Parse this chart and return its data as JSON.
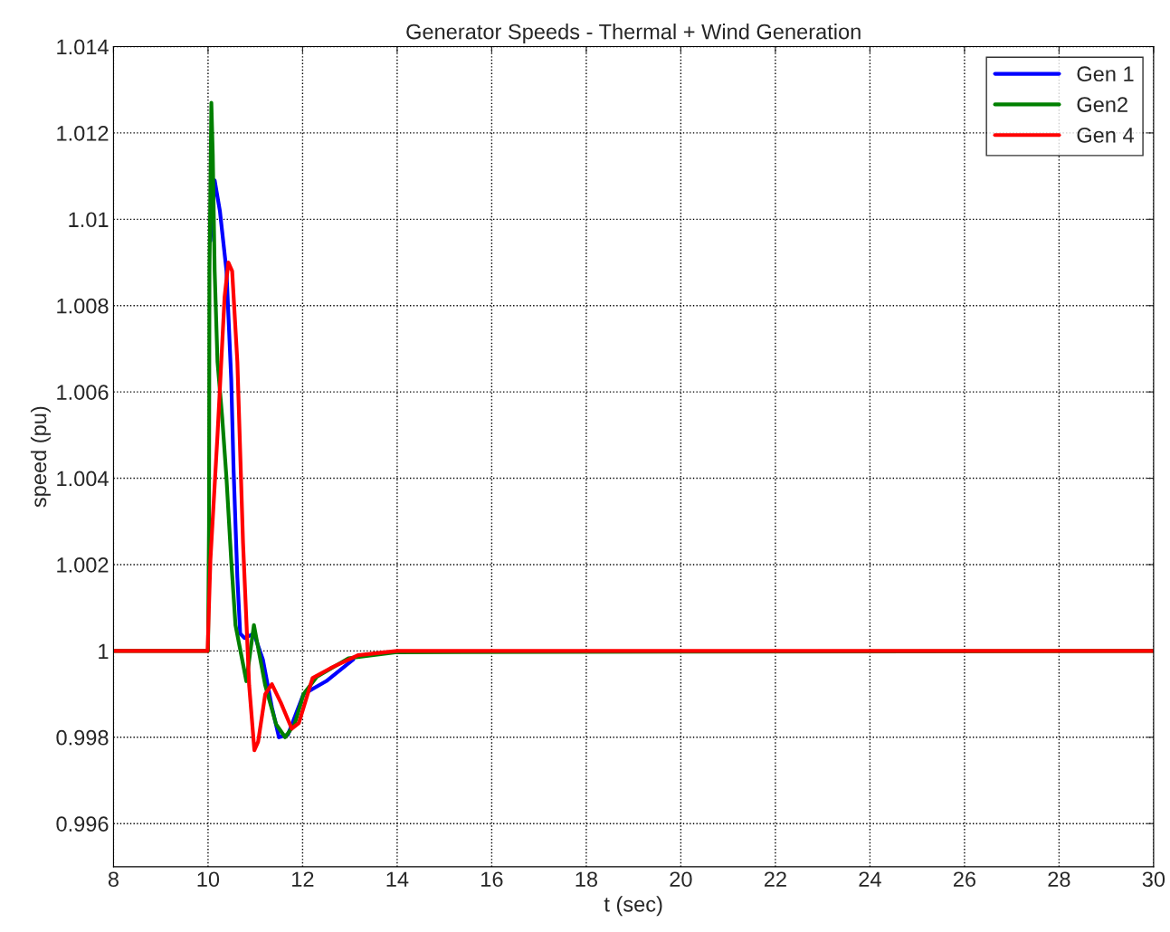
{
  "chart_data": {
    "type": "line",
    "title": "Generator Speeds - Thermal + Wind Generation",
    "xlabel": "t (sec)",
    "ylabel": "speed (pu)",
    "xlim": [
      8,
      30
    ],
    "xticks": [
      8,
      10,
      12,
      14,
      16,
      18,
      20,
      22,
      24,
      26,
      28,
      30
    ],
    "ylim": [
      0.995,
      1.014
    ],
    "yticks": [
      {
        "value": 0.996,
        "label": "0.996"
      },
      {
        "value": 0.998,
        "label": "0.998"
      },
      {
        "value": 1,
        "label": "1"
      },
      {
        "value": 1.002,
        "label": "1.002"
      },
      {
        "value": 1.004,
        "label": "1.004"
      },
      {
        "value": 1.006,
        "label": "1.006"
      },
      {
        "value": 1.008,
        "label": "1.008"
      },
      {
        "value": 1.01,
        "label": "1.01"
      },
      {
        "value": 1.012,
        "label": "1.012"
      },
      {
        "value": 1.014,
        "label": "1.014"
      }
    ],
    "grid": true,
    "legend": "top right",
    "line_style": "solid",
    "marker": "none",
    "series": [
      {
        "name": "Gen 1",
        "color": "#0000ff",
        "x": [
          10.05,
          10.14,
          10.25,
          10.39,
          10.49,
          10.54,
          10.62,
          10.68,
          10.77,
          10.97,
          11.16,
          11.35,
          11.5,
          11.69,
          12.02,
          12.5,
          13.07
        ],
        "values": [
          1.0095,
          1.0109,
          1.0102,
          1.0088,
          1.0063,
          1.0042,
          1.0017,
          1.0004,
          1.0003,
          1.0004,
          0.9998,
          0.9987,
          0.998,
          0.99806,
          0.999,
          0.9993,
          0.9998
        ]
      },
      {
        "name": "Gen2",
        "color": "#008000",
        "x": [
          8,
          10.0,
          10.02,
          10.03,
          10.07,
          10.1,
          10.14,
          10.2,
          10.3,
          10.39,
          10.49,
          10.58,
          10.81,
          10.97,
          11.21,
          11.44,
          11.63,
          11.83,
          12.02,
          12.3,
          12.97,
          14.0,
          30
        ],
        "values": [
          1.0,
          1.0,
          1.0029,
          1.0088,
          1.0127,
          1.0115,
          1.0088,
          1.0067,
          1.0054,
          1.004,
          1.0021,
          1.0006,
          0.9993,
          1.0006,
          0.9992,
          0.9983,
          0.998,
          0.9983,
          0.999,
          0.9994,
          0.99983,
          0.99997,
          1.0
        ]
      },
      {
        "name": "Gen 4",
        "color": "#ff0000",
        "x": [
          8,
          9.99,
          10.05,
          10.2,
          10.35,
          10.43,
          10.51,
          10.62,
          10.74,
          10.87,
          10.98,
          11.06,
          11.21,
          11.35,
          11.54,
          11.77,
          11.92,
          12.21,
          12.59,
          13.17,
          14.0,
          30
        ],
        "values": [
          1.0,
          1.0,
          1.0021,
          1.005,
          1.0082,
          1.009,
          1.0088,
          1.0067,
          1.0025,
          0.9992,
          0.9977,
          0.9979,
          0.999,
          0.99923,
          0.9988,
          0.9982,
          0.99833,
          0.99937,
          0.9996,
          0.9999,
          1.0,
          1.0
        ]
      }
    ]
  }
}
